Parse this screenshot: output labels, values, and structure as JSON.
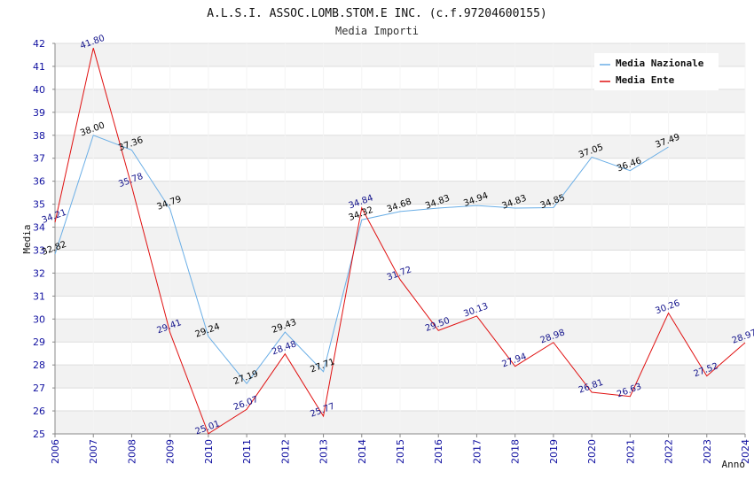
{
  "chart_data": {
    "type": "line",
    "title": "A.L.S.I. ASSOC.LOMB.STOM.E INC. (c.f.97204600155)",
    "subtitle": "Media Importi",
    "xlabel": "Anno",
    "ylabel": "Media",
    "x": [
      "2006",
      "2007",
      "2008",
      "2009",
      "2010",
      "2011",
      "2012",
      "2013",
      "2014",
      "2015",
      "2016",
      "2017",
      "2018",
      "2019",
      "2020",
      "2021",
      "2022",
      "2023",
      "2024"
    ],
    "ylim": [
      25,
      42
    ],
    "yticks": [
      "25",
      "26",
      "27",
      "28",
      "29",
      "30",
      "31",
      "32",
      "33",
      "34",
      "35",
      "36",
      "37",
      "38",
      "39",
      "40",
      "41",
      "42"
    ],
    "grid": "horizontal, alternating bands",
    "legend_position": "top-right",
    "series": [
      {
        "name": "Media Nazionale",
        "color": "#6aaee6",
        "label_color": "#000000",
        "values": [
          32.82,
          38.0,
          37.36,
          34.79,
          29.24,
          27.19,
          29.43,
          27.71,
          34.32,
          34.68,
          34.83,
          34.94,
          34.83,
          34.85,
          37.05,
          36.46,
          37.49,
          null,
          null
        ],
        "labels": [
          "32.82",
          "38.00",
          "37.36",
          "34.79",
          "29.24",
          "27.19",
          "29.43",
          "27.71",
          "34.32",
          "34.68",
          "34.83",
          "34.94",
          "34.83",
          "34.85",
          "37.05",
          "36.46",
          "37.49",
          "",
          ""
        ]
      },
      {
        "name": "Media Ente",
        "color": "#e01010",
        "label_color": "#10108a",
        "values": [
          34.21,
          41.8,
          35.78,
          29.41,
          25.01,
          26.07,
          28.48,
          25.77,
          34.84,
          31.72,
          29.5,
          30.13,
          27.94,
          28.98,
          26.81,
          26.63,
          30.26,
          27.52,
          28.97
        ],
        "labels": [
          "34.21",
          "41.80",
          "35.78",
          "29.41",
          "25.01",
          "26.07",
          "28.48",
          "25.77",
          "34.84",
          "31.72",
          "29.50",
          "30.13",
          "27.94",
          "28.98",
          "26.81",
          "26.63",
          "30.26",
          "27.52",
          "28.97"
        ]
      }
    ]
  }
}
